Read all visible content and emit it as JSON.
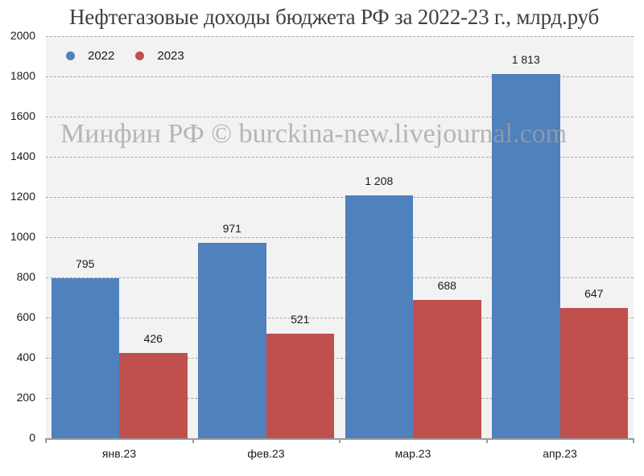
{
  "chart_data": {
    "type": "bar",
    "title": "Нефтегазовые доходы бюджета РФ за 2022-23 г., млрд.руб",
    "watermark": "Минфин РФ © burckina-new.livejournal.com",
    "xlabel": "",
    "ylabel": "",
    "categories": [
      "янв.23",
      "фев.23",
      "мар.23",
      "апр.23"
    ],
    "series": [
      {
        "name": "2022",
        "color": "#4f81bd",
        "values": [
          795,
          971,
          1208,
          1813
        ],
        "labels": [
          "795",
          "971",
          "1 208",
          "1 813"
        ]
      },
      {
        "name": "2023",
        "color": "#c0504d",
        "values": [
          426,
          521,
          688,
          647
        ],
        "labels": [
          "426",
          "521",
          "688",
          "647"
        ]
      }
    ],
    "ylim": [
      0,
      2000
    ],
    "yticks": [
      0,
      200,
      400,
      600,
      800,
      1000,
      1200,
      1400,
      1600,
      1800,
      2000
    ],
    "grid": true,
    "legend_position": "top-left inside",
    "plot_background": "#f2f2f2"
  }
}
